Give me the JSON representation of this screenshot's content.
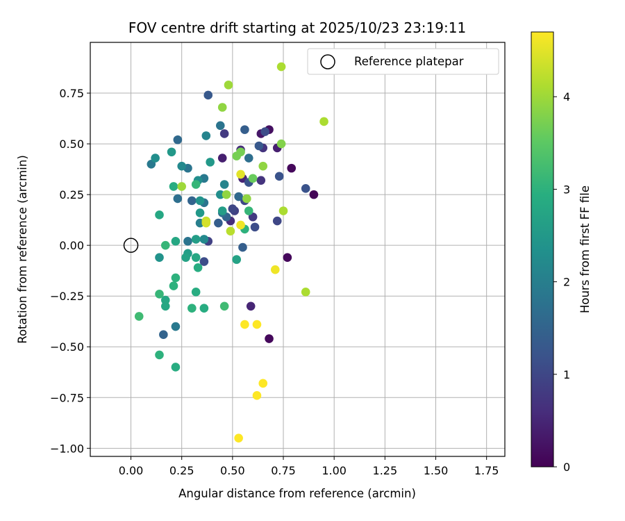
{
  "chart_data": {
    "type": "scatter",
    "title": "FOV centre drift starting at 2025/10/23 23:19:11",
    "xlabel": "Angular distance from reference (arcmin)",
    "ylabel": "Rotation from reference (arcmin)",
    "xlim": [
      -0.2,
      1.84
    ],
    "ylim": [
      -1.04,
      1.0
    ],
    "xticks": [
      0.0,
      0.25,
      0.5,
      0.75,
      1.0,
      1.25,
      1.5,
      1.75
    ],
    "xtick_labels": [
      "0.00",
      "0.25",
      "0.50",
      "0.75",
      "1.00",
      "1.25",
      "1.50",
      "1.75"
    ],
    "yticks": [
      0.75,
      0.5,
      0.25,
      0.0,
      -0.25,
      -0.5,
      -0.75,
      -1.0
    ],
    "ytick_labels": [
      "0.75",
      "0.50",
      "0.25",
      "0.00",
      "−0.25",
      "−0.50",
      "−0.75",
      "−1.00"
    ],
    "grid": true,
    "legend": {
      "position": "top-right",
      "entries": [
        "Reference platepar"
      ]
    },
    "reference_point": {
      "label": "Reference platepar",
      "x": 0.0,
      "y": 0.0
    },
    "colorbar": {
      "label": "Hours from first FF file",
      "colormap": "viridis",
      "range": [
        0,
        4.7
      ],
      "ticks": [
        0,
        1,
        2,
        3,
        4
      ],
      "tick_labels": [
        "0",
        "1",
        "2",
        "3",
        "4"
      ]
    },
    "series": [
      {
        "name": "FOV centre drift",
        "points": [
          [
            0.9,
            0.25,
            0.05
          ],
          [
            0.79,
            0.38,
            0.1
          ],
          [
            0.77,
            -0.06,
            0.1
          ],
          [
            0.68,
            -0.46,
            0.1
          ],
          [
            0.68,
            0.57,
            0.2
          ],
          [
            0.64,
            0.55,
            0.3
          ],
          [
            0.72,
            0.48,
            0.4
          ],
          [
            0.45,
            0.43,
            0.4
          ],
          [
            0.59,
            -0.3,
            0.5
          ],
          [
            0.55,
            0.33,
            0.5
          ],
          [
            0.49,
            0.12,
            0.6
          ],
          [
            0.54,
            0.47,
            0.6
          ],
          [
            0.65,
            0.48,
            0.7
          ],
          [
            0.64,
            0.32,
            0.7
          ],
          [
            0.46,
            0.55,
            0.8
          ],
          [
            0.6,
            0.14,
            0.8
          ],
          [
            0.38,
            0.02,
            0.9
          ],
          [
            0.51,
            0.17,
            0.9
          ],
          [
            0.56,
            0.22,
            1.0
          ],
          [
            0.5,
            0.18,
            1.0
          ],
          [
            0.72,
            0.12,
            1.0
          ],
          [
            0.36,
            -0.08,
            1.1
          ],
          [
            0.61,
            0.09,
            1.1
          ],
          [
            0.66,
            0.56,
            1.1
          ],
          [
            0.73,
            0.34,
            1.2
          ],
          [
            0.86,
            0.28,
            1.2
          ],
          [
            0.58,
            0.31,
            1.2
          ],
          [
            0.63,
            0.49,
            1.3
          ],
          [
            0.38,
            0.74,
            1.3
          ],
          [
            0.56,
            0.57,
            1.4
          ],
          [
            0.43,
            0.11,
            1.4
          ],
          [
            0.55,
            -0.01,
            1.4
          ],
          [
            0.16,
            -0.44,
            1.5
          ],
          [
            0.3,
            0.22,
            1.5
          ],
          [
            0.47,
            0.14,
            1.5
          ],
          [
            0.53,
            0.24,
            1.6
          ],
          [
            0.23,
            0.52,
            1.6
          ],
          [
            0.45,
            0.16,
            1.7
          ],
          [
            0.58,
            0.43,
            1.7
          ],
          [
            0.23,
            0.23,
            1.7
          ],
          [
            0.36,
            0.21,
            1.8
          ],
          [
            0.28,
            0.38,
            1.8
          ],
          [
            0.44,
            0.59,
            1.8
          ],
          [
            0.28,
            0.02,
            1.8
          ],
          [
            0.1,
            0.4,
            1.9
          ],
          [
            0.22,
            -0.4,
            1.9
          ],
          [
            0.36,
            0.33,
            1.9
          ],
          [
            0.34,
            0.11,
            2.0
          ],
          [
            0.46,
            0.3,
            2.1
          ],
          [
            0.37,
            0.54,
            2.1
          ],
          [
            0.25,
            0.39,
            2.2
          ],
          [
            0.36,
            0.03,
            2.2
          ],
          [
            0.12,
            0.43,
            2.3
          ],
          [
            0.44,
            0.25,
            2.3
          ],
          [
            0.33,
            0.32,
            2.3
          ],
          [
            0.34,
            0.22,
            2.4
          ],
          [
            0.14,
            -0.06,
            2.4
          ],
          [
            0.2,
            0.46,
            2.5
          ],
          [
            0.39,
            0.41,
            2.5
          ],
          [
            0.34,
            0.16,
            2.5
          ],
          [
            0.45,
            0.17,
            2.6
          ],
          [
            0.32,
            0.03,
            2.6
          ],
          [
            0.28,
            -0.04,
            2.6
          ],
          [
            0.52,
            -0.07,
            2.7
          ],
          [
            0.27,
            -0.06,
            2.7
          ],
          [
            0.32,
            -0.06,
            2.8
          ],
          [
            0.17,
            -0.27,
            2.8
          ],
          [
            0.22,
            0.02,
            2.8
          ],
          [
            0.14,
            0.15,
            2.8
          ],
          [
            0.17,
            -0.3,
            2.8
          ],
          [
            0.21,
            0.29,
            2.9
          ],
          [
            0.36,
            -0.31,
            2.9
          ],
          [
            0.22,
            -0.6,
            2.9
          ],
          [
            0.33,
            -0.11,
            2.9
          ],
          [
            0.32,
            -0.23,
            2.9
          ],
          [
            0.14,
            -0.54,
            3.0
          ],
          [
            0.3,
            -0.31,
            3.0
          ],
          [
            0.56,
            0.08,
            3.0
          ],
          [
            0.22,
            -0.16,
            3.0
          ],
          [
            0.21,
            -0.2,
            3.0
          ],
          [
            0.14,
            -0.24,
            3.1
          ],
          [
            0.58,
            0.17,
            3.1
          ],
          [
            0.17,
            0.0,
            3.1
          ],
          [
            0.32,
            0.3,
            3.1
          ],
          [
            0.46,
            -0.3,
            3.2
          ],
          [
            0.04,
            -0.35,
            3.2
          ],
          [
            0.6,
            0.33,
            3.6
          ],
          [
            0.52,
            0.44,
            3.7
          ],
          [
            0.54,
            0.46,
            3.7
          ],
          [
            0.74,
            0.5,
            3.8
          ],
          [
            0.45,
            0.68,
            3.9
          ],
          [
            0.47,
            0.25,
            3.9
          ],
          [
            0.65,
            0.39,
            3.9
          ],
          [
            0.57,
            0.23,
            3.9
          ],
          [
            0.25,
            0.29,
            4.0
          ],
          [
            0.48,
            0.79,
            4.0
          ],
          [
            0.74,
            0.88,
            4.1
          ],
          [
            0.75,
            0.17,
            4.1
          ],
          [
            0.95,
            0.61,
            4.1
          ],
          [
            0.86,
            -0.23,
            4.1
          ],
          [
            0.49,
            0.07,
            4.2
          ],
          [
            0.37,
            0.12,
            4.3
          ],
          [
            0.37,
            0.11,
            4.4
          ],
          [
            0.54,
            0.35,
            4.5
          ],
          [
            0.54,
            0.1,
            4.6
          ],
          [
            0.71,
            -0.12,
            4.6
          ],
          [
            0.56,
            -0.39,
            4.7
          ],
          [
            0.62,
            -0.39,
            4.7
          ],
          [
            0.65,
            -0.68,
            4.7
          ],
          [
            0.62,
            -0.74,
            4.7
          ],
          [
            0.53,
            -0.95,
            4.7
          ]
        ]
      }
    ]
  }
}
